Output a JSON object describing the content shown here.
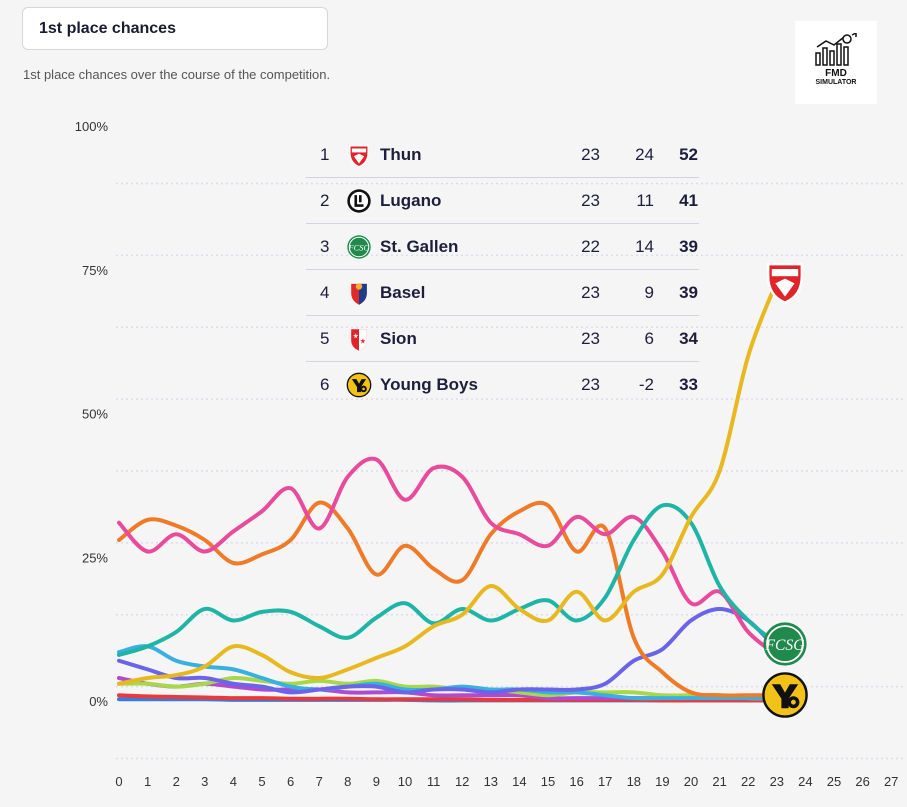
{
  "header": {
    "title": "1st place chances",
    "subtitle": "1st place chances over the course of the competition."
  },
  "logo": {
    "line1": "FMD",
    "line2": "SIMULATOR"
  },
  "standings": [
    {
      "rank": "1",
      "team": "Thun",
      "played": "23",
      "gd": "24",
      "pts": "52",
      "badge_icon": "thun-crest-icon"
    },
    {
      "rank": "2",
      "team": "Lugano",
      "played": "23",
      "gd": "11",
      "pts": "41",
      "badge_icon": "lugano-crest-icon"
    },
    {
      "rank": "3",
      "team": "St. Gallen",
      "played": "22",
      "gd": "14",
      "pts": "39",
      "badge_icon": "st-gallen-crest-icon"
    },
    {
      "rank": "4",
      "team": "Basel",
      "played": "23",
      "gd": "9",
      "pts": "39",
      "badge_icon": "basel-crest-icon"
    },
    {
      "rank": "5",
      "team": "Sion",
      "played": "23",
      "gd": "6",
      "pts": "34",
      "badge_icon": "sion-crest-icon"
    },
    {
      "rank": "6",
      "team": "Young Boys",
      "played": "23",
      "gd": "-2",
      "pts": "33",
      "badge_icon": "young-boys-crest-icon"
    }
  ],
  "chart_data": {
    "type": "line",
    "title": "1st place chances",
    "xlabel": "",
    "ylabel": "",
    "x": [
      0,
      1,
      2,
      3,
      4,
      5,
      6,
      7,
      8,
      9,
      10,
      11,
      12,
      13,
      14,
      15,
      16,
      17,
      18,
      19,
      20,
      21,
      22,
      23
    ],
    "xticks": [
      "0",
      "1",
      "2",
      "3",
      "4",
      "5",
      "6",
      "7",
      "8",
      "9",
      "10",
      "11",
      "12",
      "13",
      "14",
      "15",
      "16",
      "17",
      "18",
      "19",
      "20",
      "21",
      "22",
      "23",
      "24",
      "25",
      "26",
      "27"
    ],
    "xlim": [
      0,
      27
    ],
    "ylim": [
      -10,
      100
    ],
    "yticks": [
      0,
      25,
      50,
      75,
      100
    ],
    "ytick_labels": [
      "0%",
      "25%",
      "50%",
      "75%",
      "100%"
    ],
    "grid": true,
    "series": [
      {
        "color": "#e8b820",
        "values": [
          3,
          4,
          4.5,
          6,
          9.5,
          8,
          5,
          4,
          5.5,
          7.5,
          9.5,
          13,
          15,
          20,
          16,
          14,
          19,
          14,
          19,
          22,
          32,
          40,
          60,
          73
        ]
      },
      {
        "color": "#1fb5a6",
        "values": [
          8,
          9.5,
          12,
          16,
          14,
          15.5,
          15.5,
          13,
          11,
          14.5,
          17,
          13.5,
          16,
          14,
          16,
          17.5,
          14,
          18,
          28,
          34,
          31,
          20,
          14,
          10
        ]
      },
      {
        "color": "#e84b9c",
        "values": [
          31,
          26,
          29,
          26,
          29.5,
          33,
          37,
          30,
          39,
          42,
          35,
          40.5,
          39,
          31,
          29,
          27,
          32,
          29,
          32,
          26,
          17,
          19,
          12,
          8
        ]
      },
      {
        "color": "#ef7a28",
        "values": [
          28,
          31.5,
          30.5,
          28,
          24,
          25.5,
          28,
          34.5,
          30,
          22,
          27,
          23,
          21,
          29,
          33,
          34,
          26,
          30,
          11,
          5,
          1.5,
          1,
          1,
          1
        ]
      },
      {
        "color": "#6a64e8",
        "values": [
          7,
          5.5,
          4,
          4,
          3,
          2.5,
          1.5,
          2,
          2.5,
          2.5,
          1.5,
          2,
          2,
          1.5,
          2,
          2,
          2,
          3,
          7,
          9,
          14,
          16,
          14,
          9
        ]
      },
      {
        "color": "#38b0e0",
        "values": [
          8.5,
          9.5,
          7,
          6,
          5.5,
          4,
          2.5,
          2,
          2.5,
          3,
          2,
          2,
          2.5,
          2,
          2,
          1.5,
          1.5,
          1,
          0.5,
          0.5,
          0.5,
          0.5,
          0.5,
          0.5
        ]
      },
      {
        "color": "#a8d84a",
        "values": [
          3,
          3,
          2.5,
          3,
          4,
          3.5,
          3,
          3.5,
          3,
          3.5,
          2.5,
          2.5,
          2,
          2,
          1.5,
          1,
          1.5,
          1.5,
          1.5,
          1,
          1,
          1,
          0.5,
          0.5
        ]
      },
      {
        "color": "#b04ad0",
        "values": [
          4,
          3,
          2.5,
          3,
          2.5,
          2,
          2,
          2,
          1.5,
          1.5,
          1.5,
          1,
          1,
          1,
          1,
          0.5,
          0.5,
          0.5,
          0.5,
          0.5,
          0.5,
          0.5,
          0.5,
          0.5
        ]
      },
      {
        "color": "#e83a3a",
        "values": [
          1,
          0.8,
          0.7,
          0.6,
          0.5,
          0.5,
          0.4,
          0.4,
          0.4,
          0.3,
          0.3,
          0.3,
          0.3,
          0.2,
          0.2,
          0.2,
          0.2,
          0.2,
          0.2,
          0.1,
          0.1,
          0.1,
          0.1,
          0.1
        ]
      },
      {
        "color": "#3a7ad8",
        "values": [
          0.3,
          0.3,
          0.3,
          0.3,
          0.2,
          0.2,
          0.2,
          0.2,
          0.2,
          0.2,
          0.2,
          0.1,
          0.1,
          0.1,
          0.1,
          0.1,
          0.1,
          0.1,
          0.1,
          0.1,
          0.1,
          0.1,
          0.1,
          0.1
        ]
      }
    ],
    "end_markers": [
      {
        "icon": "thun-crest-icon",
        "series_index": 0
      },
      {
        "icon": "st-gallen-crest-icon",
        "series_index": 1
      },
      {
        "icon": "young-boys-crest-icon",
        "series_index": 3
      }
    ]
  }
}
